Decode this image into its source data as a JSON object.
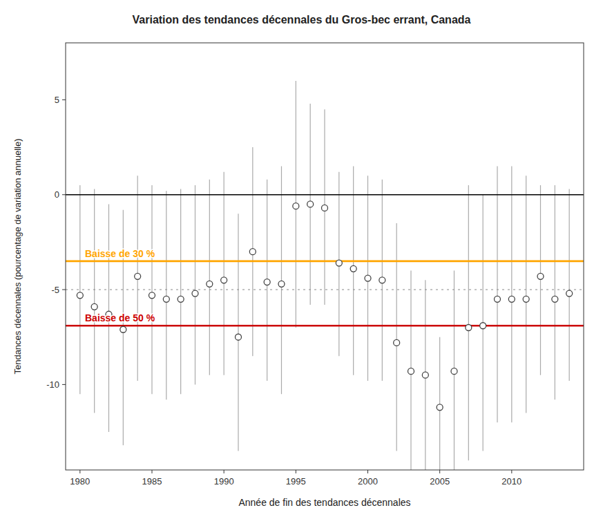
{
  "chart_data": {
    "type": "scatter",
    "title": "Variation des tendances décennales du Gros-bec errant, Canada",
    "xlabel": "Année de fin des tendances décennales",
    "ylabel": "Tendances décennales (pourcentage de variation annuelle)",
    "xlim": [
      1979,
      2015
    ],
    "ylim": [
      -14.5,
      8.0
    ],
    "xticks": [
      1980,
      1985,
      1990,
      1995,
      2000,
      2005,
      2010
    ],
    "yticks": [
      5,
      0,
      -5,
      -10
    ],
    "grid": false,
    "color": "#444444",
    "marker": "open-circle",
    "x": [
      1980,
      1981,
      1982,
      1983,
      1984,
      1985,
      1986,
      1987,
      1988,
      1989,
      1990,
      1991,
      1992,
      1993,
      1994,
      1995,
      1996,
      1997,
      1998,
      1999,
      2000,
      2001,
      2002,
      2003,
      2004,
      2005,
      2006,
      2007,
      2008,
      2009,
      2010,
      2011,
      2012,
      2013,
      2014
    ],
    "values": [
      -5.3,
      -5.9,
      -6.3,
      -7.1,
      -4.3,
      -5.3,
      -5.5,
      -5.5,
      -5.2,
      -4.7,
      -4.5,
      -7.5,
      -3.0,
      -4.6,
      -4.7,
      -0.6,
      -0.5,
      -0.7,
      -3.6,
      -3.9,
      -4.4,
      -4.5,
      -7.8,
      -9.3,
      -9.5,
      -11.2,
      -9.3,
      -7.0,
      -6.9,
      -5.5,
      -5.5,
      -5.5,
      -4.3,
      -5.5,
      -5.2
    ],
    "lower": [
      -10.5,
      -11.5,
      -12.5,
      -13.2,
      -9.8,
      -10.5,
      -10.8,
      -10.5,
      -10.0,
      -9.5,
      -9.5,
      -13.5,
      -8.5,
      -9.8,
      -10.5,
      -7.0,
      -5.8,
      -5.8,
      -8.5,
      -9.5,
      -9.8,
      -9.8,
      -13.5,
      -14.5,
      -14.5,
      -14.5,
      -14.5,
      -14.0,
      -13.5,
      -12.0,
      -12.0,
      -11.5,
      -9.5,
      -10.8,
      -9.8
    ],
    "upper": [
      0.5,
      0.3,
      -0.5,
      -0.8,
      1.0,
      0.5,
      0.2,
      0.3,
      0.5,
      0.8,
      1.2,
      -1.0,
      2.5,
      0.8,
      1.5,
      6.0,
      4.8,
      4.5,
      1.2,
      1.5,
      1.0,
      0.8,
      -1.5,
      -4.0,
      -4.5,
      -7.5,
      -4.0,
      0.5,
      0.0,
      1.5,
      1.5,
      1.0,
      0.5,
      0.5,
      0.3
    ],
    "reference_lines": [
      {
        "value": 0,
        "color": "#000000"
      },
      {
        "value": -3.5,
        "color": "#FFA500",
        "label": "Baisse de 30 %"
      },
      {
        "value": -6.9,
        "color": "#CC0000",
        "label": "Baisse de 50 %"
      },
      {
        "value": -5.0,
        "color": "#888888",
        "line_style": "dotted"
      }
    ]
  }
}
